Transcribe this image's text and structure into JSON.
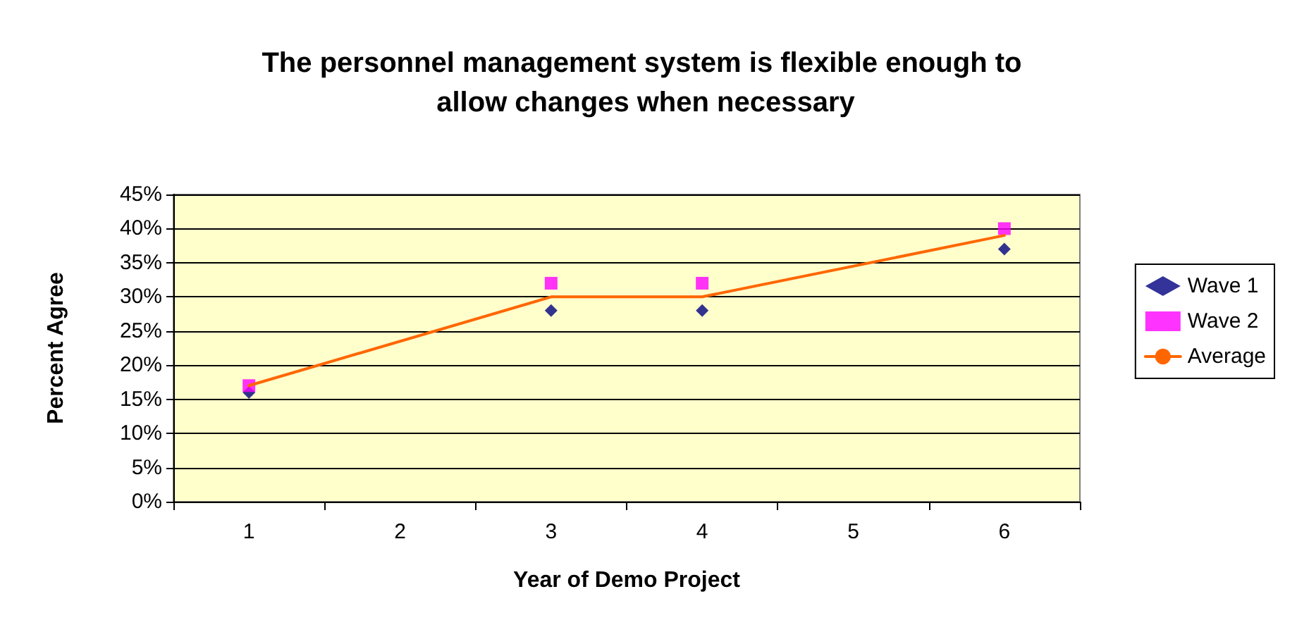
{
  "chart_data": {
    "type": "scatter",
    "title": "The personnel management system is flexible enough to allow changes when necessary",
    "xlabel": "Year of Demo Project",
    "ylabel": "Percent Agree",
    "categories": [
      "1",
      "2",
      "3",
      "4",
      "5",
      "6"
    ],
    "series": [
      {
        "name": "Wave 1",
        "color": "#000080",
        "marker": "diamond",
        "values": [
          16,
          null,
          28,
          28,
          null,
          37
        ]
      },
      {
        "name": "Wave 2",
        "color": "#ff00ff",
        "marker": "square",
        "values": [
          17,
          null,
          32,
          32,
          null,
          40
        ]
      },
      {
        "name": "Average",
        "type": "line",
        "color": "#ff6600",
        "marker": "none",
        "values": [
          17,
          null,
          30,
          30,
          null,
          39
        ]
      }
    ],
    "ylim": [
      0,
      45
    ],
    "yticks": [
      {
        "value": 0,
        "label": "0%"
      },
      {
        "value": 5,
        "label": "5%"
      },
      {
        "value": 10,
        "label": "10%"
      },
      {
        "value": 15,
        "label": "15%"
      },
      {
        "value": 20,
        "label": "20%"
      },
      {
        "value": 25,
        "label": "25%"
      },
      {
        "value": 30,
        "label": "30%"
      },
      {
        "value": 35,
        "label": "35%"
      },
      {
        "value": 40,
        "label": "40%"
      },
      {
        "value": 45,
        "label": "45%"
      }
    ],
    "grid": "y",
    "legend": "right"
  }
}
